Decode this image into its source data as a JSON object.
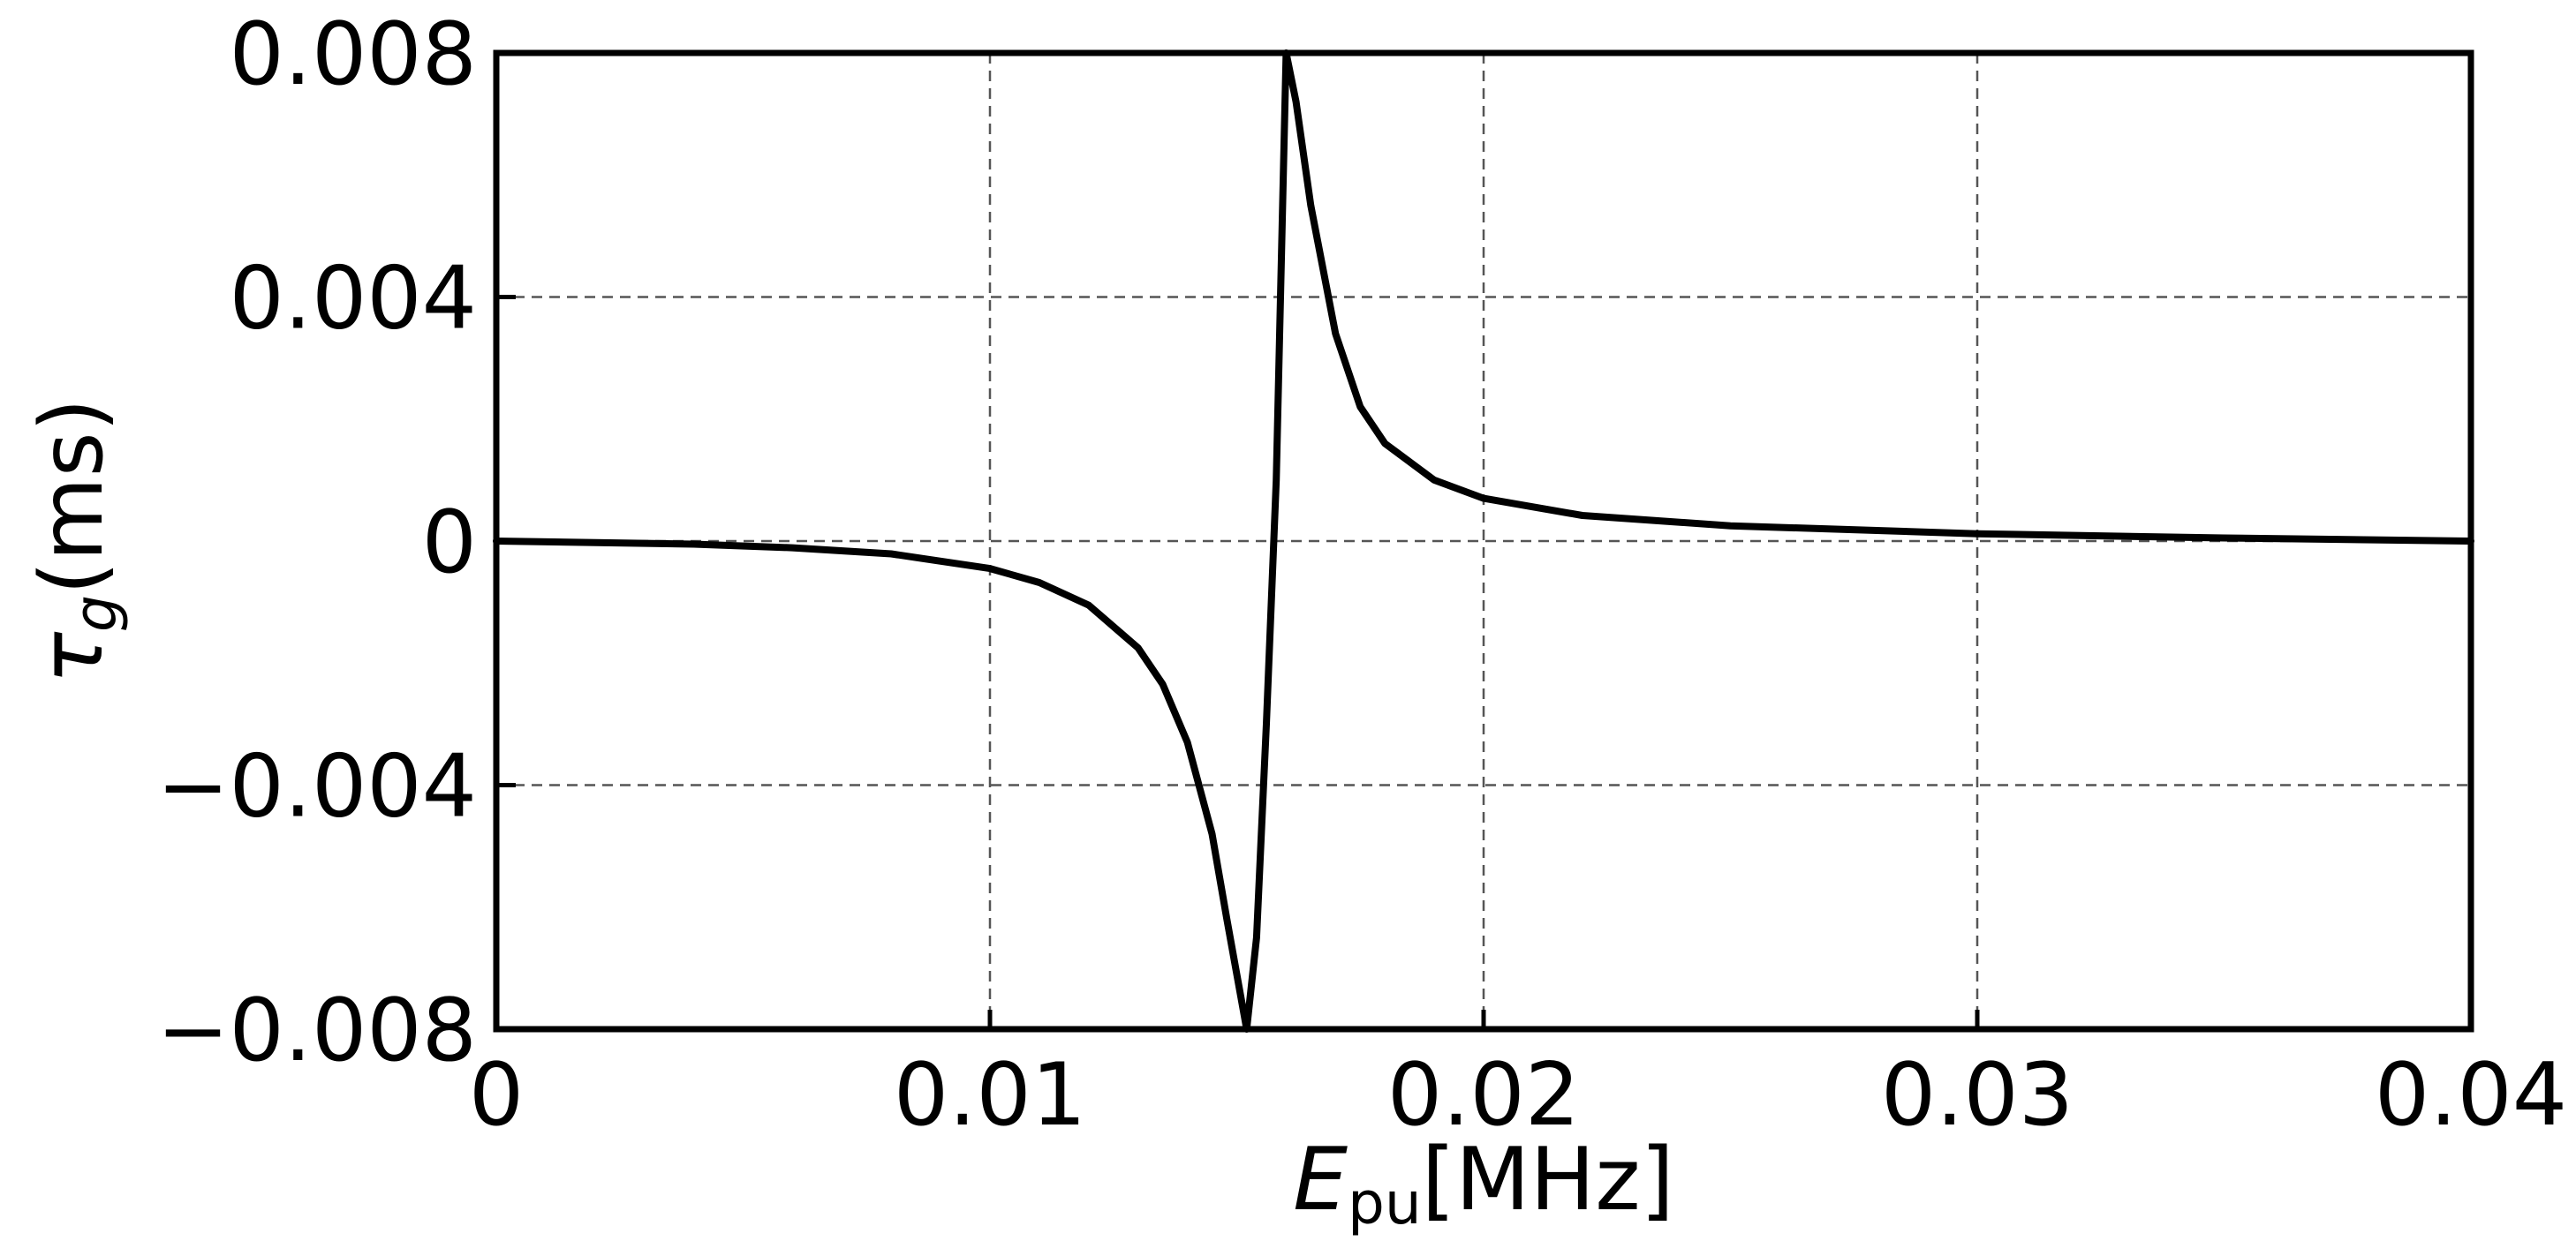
{
  "chart_data": {
    "type": "line",
    "title": "",
    "xlabel": {
      "symbol": "E",
      "subscript": "pu",
      "unit": "[MHz]"
    },
    "ylabel": {
      "symbol": "τ",
      "subscript": "g",
      "unit": "(ms)"
    },
    "xlim": [
      0,
      0.04
    ],
    "ylim": [
      -0.008,
      0.008
    ],
    "xticks": [
      0,
      0.01,
      0.02,
      0.03,
      0.04
    ],
    "xtick_labels": [
      "0",
      "0.01",
      "0.02",
      "0.03",
      "0.04"
    ],
    "yticks": [
      -0.008,
      -0.004,
      0,
      0.004,
      0.008
    ],
    "ytick_labels": [
      "−0.008",
      "−0.004",
      "0",
      "0.004",
      "0.008"
    ],
    "grid": true,
    "series": [
      {
        "color": "#000000",
        "x": [
          0,
          0.004,
          0.006,
          0.008,
          0.01,
          0.011,
          0.012,
          0.013,
          0.0135,
          0.014,
          0.0145,
          0.0148,
          0.015,
          0.0152,
          0.0154,
          0.0156,
          0.0158,
          0.016,
          0.0162,
          0.0165,
          0.017,
          0.0175,
          0.018,
          0.019,
          0.02,
          0.022,
          0.025,
          0.03,
          0.035,
          0.04
        ],
        "y": [
          0,
          -5e-05,
          -0.00011,
          -0.00021,
          -0.00045,
          -0.00068,
          -0.00105,
          -0.00175,
          -0.00235,
          -0.0033,
          -0.0048,
          -0.0062,
          -0.0071,
          -0.008,
          -0.0065,
          -0.003,
          0.001,
          0.008,
          0.0072,
          0.0055,
          0.0034,
          0.0022,
          0.0016,
          0.001,
          0.0007,
          0.00042,
          0.00025,
          0.00012,
          5e-05,
          0
        ]
      }
    ]
  }
}
